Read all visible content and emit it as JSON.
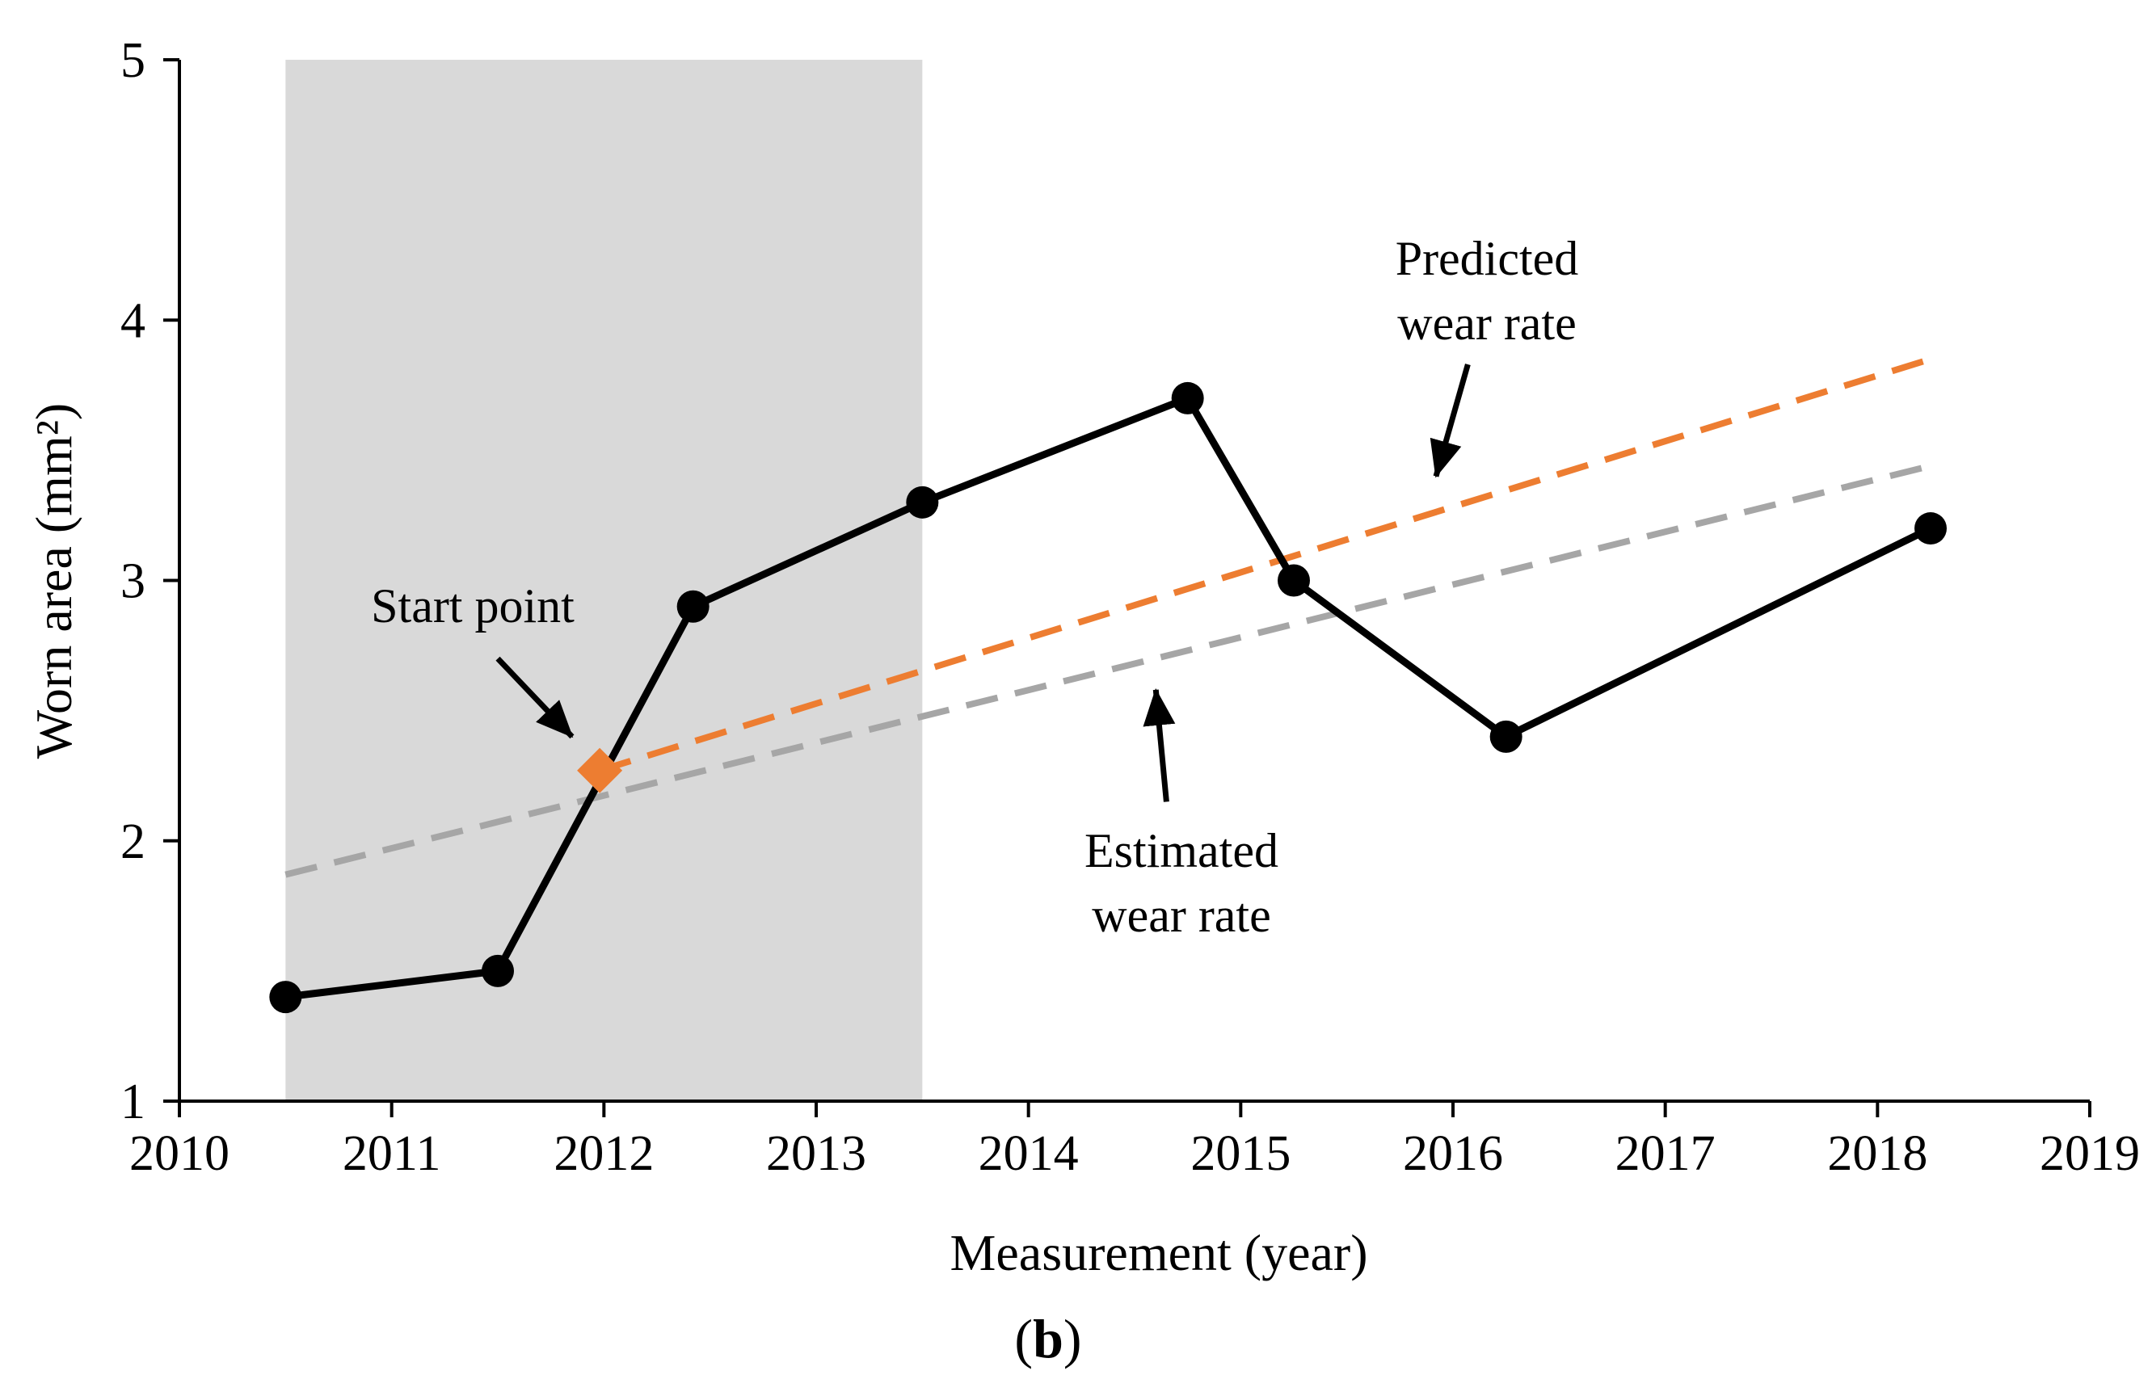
{
  "chart_data": {
    "type": "line",
    "title": "",
    "xlabel": "Measurement (year)",
    "ylabel": "Worn area (mm²)",
    "xlim": [
      2010,
      2019
    ],
    "ylim": [
      1,
      5
    ],
    "x_ticks": [
      2010,
      2011,
      2012,
      2013,
      2014,
      2015,
      2016,
      2017,
      2018,
      2019
    ],
    "y_ticks": [
      1,
      2,
      3,
      4,
      5
    ],
    "shaded_region": {
      "x_start": 2010.5,
      "x_end": 2013.5,
      "y_start": 1,
      "y_end": 5,
      "color": "#d9d9d9"
    },
    "series": [
      {
        "name": "Worn area",
        "style": "solid",
        "marker": "circle",
        "color": "#000000",
        "points": [
          {
            "x": 2010.5,
            "y": 1.4
          },
          {
            "x": 2011.5,
            "y": 1.5
          },
          {
            "x": 2012.42,
            "y": 2.9
          },
          {
            "x": 2013.5,
            "y": 3.3
          },
          {
            "x": 2014.75,
            "y": 3.7
          },
          {
            "x": 2015.25,
            "y": 3.0
          },
          {
            "x": 2016.25,
            "y": 2.4
          },
          {
            "x": 2018.25,
            "y": 3.2
          }
        ]
      },
      {
        "name": "Estimated wear rate",
        "style": "dashed",
        "color": "#a6a6a6",
        "points": [
          {
            "x": 2010.5,
            "y": 1.87
          },
          {
            "x": 2018.25,
            "y": 3.44
          }
        ]
      },
      {
        "name": "Predicted wear rate",
        "style": "dashed",
        "color": "#ed7d31",
        "points": [
          {
            "x": 2011.98,
            "y": 2.27
          },
          {
            "x": 2018.25,
            "y": 3.85
          }
        ]
      }
    ],
    "start_point": {
      "x": 2011.98,
      "y": 2.27,
      "marker": "diamond",
      "color": "#ed7d31"
    },
    "annotations": [
      {
        "lines": [
          "Start point"
        ],
        "arrow_from": {
          "x": 2011.5,
          "y": 2.7
        },
        "arrow_to": {
          "x": 2011.85,
          "y": 2.4
        }
      },
      {
        "lines": [
          "Predicted",
          "wear rate"
        ],
        "arrow_from": {
          "x": 2016.07,
          "y": 3.83
        },
        "arrow_to": {
          "x": 2015.92,
          "y": 3.4
        }
      },
      {
        "lines": [
          "Estimated",
          "wear rate"
        ],
        "arrow_from": {
          "x": 2014.65,
          "y": 2.15
        },
        "arrow_to": {
          "x": 2014.6,
          "y": 2.58
        }
      }
    ],
    "caption": "(b)"
  }
}
